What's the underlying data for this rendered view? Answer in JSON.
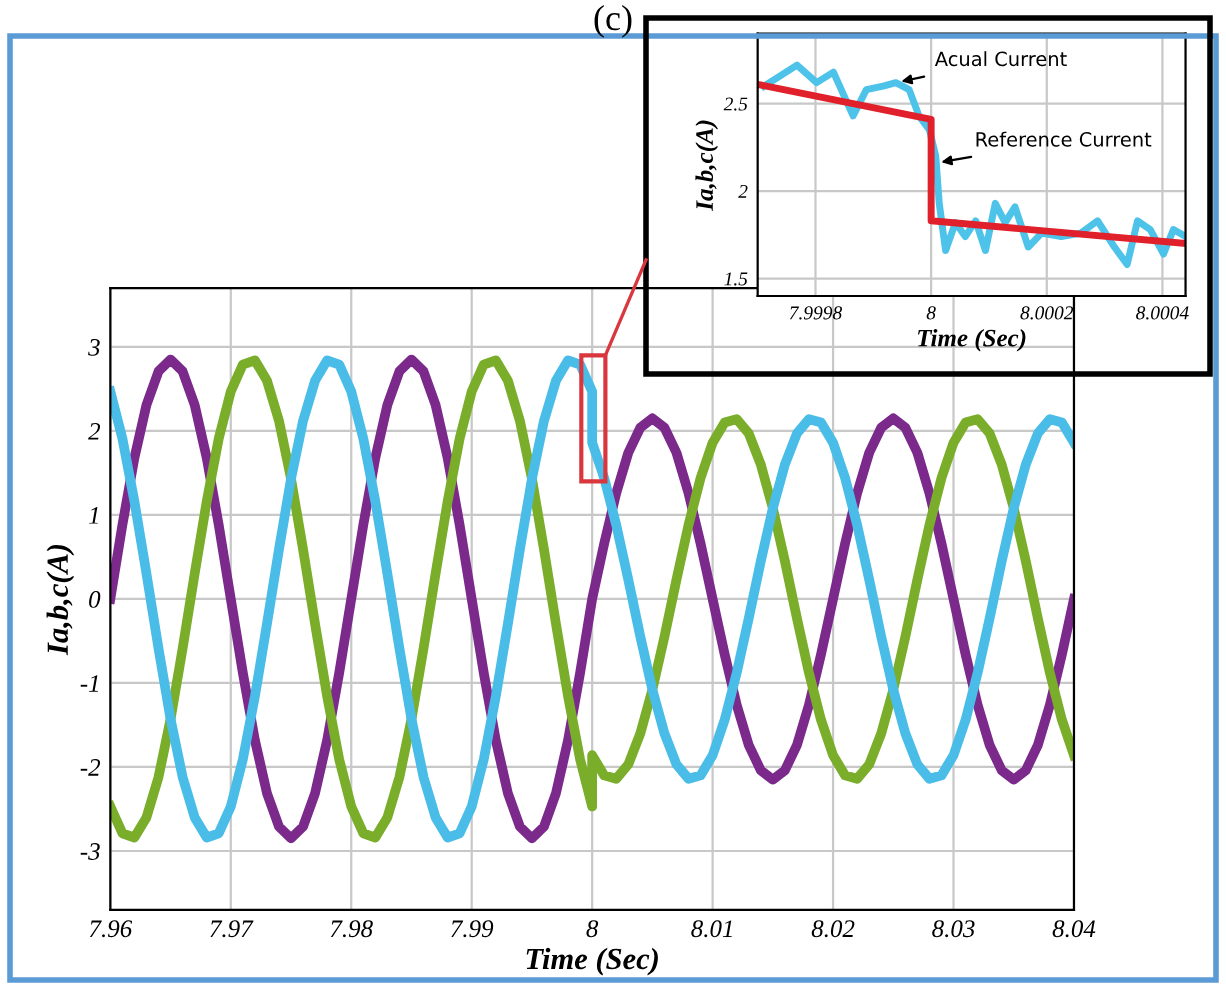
{
  "chart_data": [
    {
      "type": "line",
      "title": "(c)",
      "xlabel": "Time (Sec)",
      "ylabel": "Ia,b,c(A)",
      "x": [
        7.96,
        7.961,
        7.962,
        7.963,
        7.964,
        7.965,
        7.966,
        7.967,
        7.968,
        7.969,
        7.97,
        7.971,
        7.972,
        7.973,
        7.974,
        7.975,
        7.976,
        7.977,
        7.978,
        7.979,
        7.98,
        7.981,
        7.982,
        7.983,
        7.984,
        7.985,
        7.986,
        7.987,
        7.988,
        7.989,
        7.99,
        7.991,
        7.992,
        7.993,
        7.994,
        7.995,
        7.996,
        7.997,
        7.998,
        7.999,
        8,
        8,
        8.001,
        8.002,
        8.003,
        8.004,
        8.005,
        8.006,
        8.007,
        8.008,
        8.009,
        8.01,
        8.011,
        8.012,
        8.013,
        8.014,
        8.015,
        8.016,
        8.017,
        8.018,
        8.019,
        8.02,
        8.021,
        8.022,
        8.023,
        8.024,
        8.025,
        8.026,
        8.027,
        8.028,
        8.029,
        8.03,
        8.031,
        8.032,
        8.033,
        8.034,
        8.035,
        8.036,
        8.037,
        8.038,
        8.039,
        8.04
      ],
      "series": [
        {
          "color": "#7b2a8c",
          "values": [
            0,
            0.88,
            1.68,
            2.31,
            2.71,
            2.85,
            2.71,
            2.31,
            1.68,
            0.88,
            0,
            -0.88,
            -1.68,
            -2.31,
            -2.71,
            -2.85,
            -2.71,
            -2.31,
            -1.68,
            -0.88,
            0,
            0.88,
            1.68,
            2.31,
            2.71,
            2.85,
            2.71,
            2.31,
            1.68,
            0.88,
            0,
            -0.88,
            -1.68,
            -2.31,
            -2.71,
            -2.85,
            -2.71,
            -2.31,
            -1.68,
            -0.88,
            0,
            0,
            0.66,
            1.26,
            1.74,
            2.04,
            2.15,
            2.04,
            1.74,
            1.26,
            0.66,
            0,
            -0.66,
            -1.26,
            -1.74,
            -2.04,
            -2.15,
            -2.04,
            -1.74,
            -1.26,
            -0.66,
            0,
            0.66,
            1.26,
            1.74,
            2.04,
            2.15,
            2.04,
            1.74,
            1.26,
            0.66,
            0,
            -0.66,
            -1.26,
            -1.74,
            -2.04,
            -2.15,
            -2.04,
            -1.74,
            -1.26,
            -0.66,
            0
          ]
        },
        {
          "color": "#7aad2a",
          "values": [
            -2.47,
            -2.79,
            -2.84,
            -2.6,
            -2.12,
            -1.43,
            -0.59,
            0.3,
            1.16,
            1.91,
            2.47,
            2.79,
            2.84,
            2.6,
            2.12,
            1.43,
            0.59,
            -0.3,
            -1.16,
            -1.91,
            -2.47,
            -2.79,
            -2.84,
            -2.6,
            -2.12,
            -1.43,
            -0.59,
            0.3,
            1.16,
            1.91,
            2.47,
            2.79,
            2.84,
            2.6,
            2.12,
            1.43,
            0.59,
            -0.3,
            -1.16,
            -1.91,
            -2.47,
            -1.86,
            -2.1,
            -2.14,
            -1.97,
            -1.6,
            -1.08,
            -0.45,
            0.23,
            0.88,
            1.44,
            1.86,
            2.1,
            2.14,
            1.97,
            1.6,
            1.08,
            0.45,
            -0.23,
            -0.88,
            -1.44,
            -1.86,
            -2.1,
            -2.14,
            -1.97,
            -1.6,
            -1.08,
            -0.45,
            0.23,
            0.88,
            1.44,
            1.86,
            2.1,
            2.14,
            1.97,
            1.6,
            1.08,
            0.45,
            -0.23,
            -0.88,
            -1.44,
            -1.86
          ]
        },
        {
          "color": "#49bde8",
          "values": [
            2.47,
            1.91,
            1.16,
            0.3,
            -0.59,
            -1.43,
            -2.12,
            -2.6,
            -2.84,
            -2.79,
            -2.47,
            -1.91,
            -1.16,
            -0.3,
            0.59,
            1.43,
            2.12,
            2.6,
            2.84,
            2.79,
            2.47,
            1.91,
            1.16,
            0.3,
            -0.59,
            -1.43,
            -2.12,
            -2.6,
            -2.84,
            -2.79,
            -2.47,
            -1.91,
            -1.16,
            -0.3,
            0.59,
            1.43,
            2.12,
            2.6,
            2.84,
            2.79,
            2.47,
            1.86,
            1.44,
            0.88,
            0.23,
            -0.45,
            -1.08,
            -1.6,
            -1.97,
            -2.14,
            -2.1,
            -1.86,
            -1.44,
            -0.88,
            -0.23,
            0.45,
            1.08,
            1.6,
            1.97,
            2.14,
            2.1,
            1.86,
            1.44,
            0.88,
            0.23,
            -0.45,
            -1.08,
            -1.6,
            -1.97,
            -2.14,
            -2.1,
            -1.86,
            -1.44,
            -0.88,
            -0.23,
            0.45,
            1.08,
            1.6,
            1.97,
            2.14,
            2.1,
            1.86
          ]
        }
      ],
      "xlim": [
        7.96,
        8.04
      ],
      "ylim": [
        -3.7,
        3.7
      ],
      "xticks": [
        7.96,
        7.97,
        7.98,
        7.99,
        8,
        8.01,
        8.02,
        8.03,
        8.04
      ],
      "yticks": [
        -3,
        -2,
        -1,
        0,
        1,
        2,
        3
      ],
      "grid": true
    },
    {
      "type": "line",
      "xlabel": "Time (Sec)",
      "ylabel": "Ia,b,c(A)",
      "series": [
        {
          "color": "#4dc3ea",
          "x": [
            7.999711,
            7.999768,
            7.999802,
            7.999831,
            7.999865,
            7.999888,
            7.999917,
            7.999939,
            7.999962,
            7.999979,
            7.999997,
            8.000008,
            8.000014,
            8.000025,
            8.000042,
            8.000059,
            8.000077,
            8.000094,
            8.000111,
            8.000128,
            8.000145,
            8.000168,
            8.000191,
            8.000225,
            8.000259,
            8.000288,
            8.000317,
            8.000339,
            8.000357,
            8.000379,
            8.000402,
            8.000419,
            8.00044
          ],
          "values": [
            2.6,
            2.72,
            2.62,
            2.68,
            2.43,
            2.58,
            2.6,
            2.62,
            2.58,
            2.43,
            2.35,
            2.2,
            1.93,
            1.66,
            1.82,
            1.74,
            1.83,
            1.66,
            1.93,
            1.82,
            1.91,
            1.68,
            1.76,
            1.74,
            1.76,
            1.83,
            1.68,
            1.58,
            1.83,
            1.78,
            1.64,
            1.78,
            1.74
          ]
        },
        {
          "color": "#e0202a",
          "x": [
            7.9997,
            8,
            8,
            8.00044
          ],
          "values": [
            2.61,
            2.41,
            1.83,
            1.7
          ]
        }
      ],
      "annotations": [
        {
          "text": "Acual Current",
          "x": 7.999939,
          "y": 2.62
        },
        {
          "text": "Reference Current",
          "x": 8.000008,
          "y": 2.16
        }
      ],
      "xlim": [
        7.9997,
        8.00044
      ],
      "ylim": [
        1.4,
        2.9
      ],
      "xticks": [
        7.9998,
        8,
        8.0002,
        8.0004
      ],
      "yticks": [
        1.5,
        2,
        2.5
      ],
      "grid": true
    }
  ]
}
